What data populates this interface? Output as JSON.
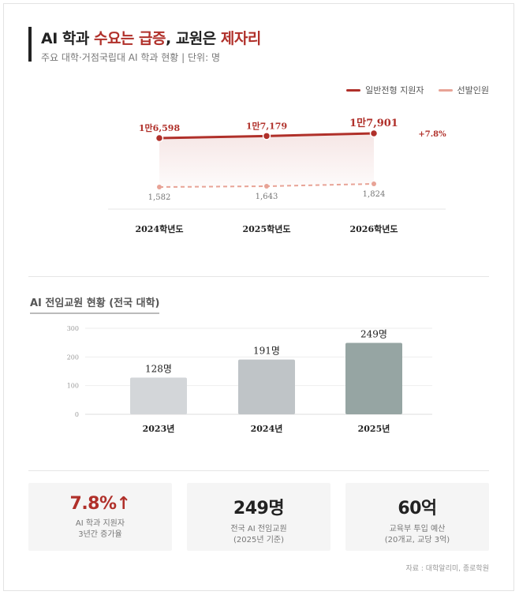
{
  "header": {
    "title_part1": "AI 학과 ",
    "title_hl1": "수요는 급증",
    "title_part2": ", 교원은 ",
    "title_hl2": "제자리",
    "subtitle": "주요 대학·거점국립대 AI 학과 현황 | 단위: 명"
  },
  "colors": {
    "accent": "#b0302a",
    "accent_light": "#e8a396",
    "bar_2023": "#d3d6d9",
    "bar_2024": "#bfc4c7",
    "bar_2025": "#96a5a3"
  },
  "chart_data": [
    {
      "type": "line",
      "categories": [
        "2024학년도",
        "2025학년도",
        "2026학년도"
      ],
      "series": [
        {
          "name": "일반전형 지원자",
          "values": [
            16598,
            17179,
            17901
          ],
          "labels": [
            "1만6,598",
            "1만7,179",
            "1만7,901"
          ]
        },
        {
          "name": "선발인원",
          "values": [
            1582,
            1643,
            1824
          ],
          "labels": [
            "1,582",
            "1,643",
            "1,824"
          ]
        }
      ],
      "annotation": "+7.8%",
      "legend_position": "top-right"
    },
    {
      "type": "bar",
      "title": "AI 전임교원 현황 (전국 대학)",
      "categories": [
        "2023년",
        "2024년",
        "2025년"
      ],
      "values": [
        128,
        191,
        249
      ],
      "value_labels": [
        "128명",
        "191명",
        "249명"
      ],
      "ylim": [
        0,
        300
      ],
      "yticks": [
        "0",
        "100",
        "200",
        "300"
      ],
      "grid": true
    }
  ],
  "cards": [
    {
      "value": "7.8%↑",
      "label1": "AI 학과 지원자",
      "label2": "3년간 증가율"
    },
    {
      "value": "249명",
      "label1": "전국 AI 전임교원",
      "label2": "(2025년 기준)"
    },
    {
      "value": "60억",
      "label1": "교육부 투입 예산",
      "label2": "(20개교, 교당 3억)"
    }
  ],
  "source": "자료 : 대학알리미, 종로학원"
}
